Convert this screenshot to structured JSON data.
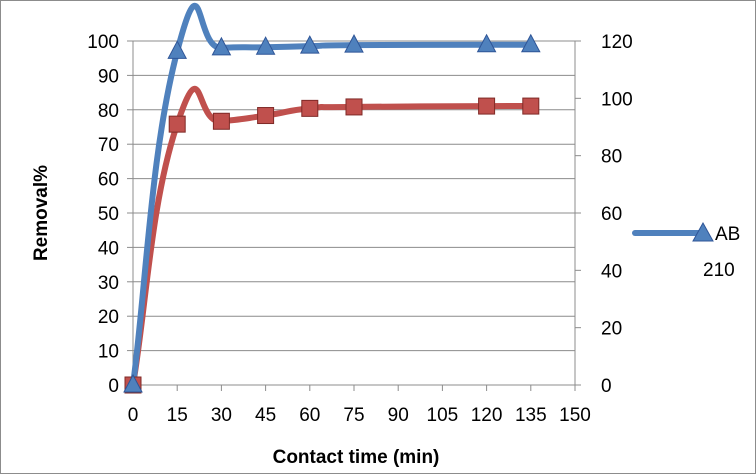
{
  "chart_data": {
    "type": "line",
    "xlabel": "Contact time (min)",
    "ylabel": "Removal%",
    "ylabel_right": "",
    "x_ticks": [
      0,
      15,
      30,
      45,
      60,
      75,
      90,
      105,
      120,
      135,
      150
    ],
    "xlim": [
      0,
      150
    ],
    "ylim": [
      0,
      100
    ],
    "y_ticks": [
      0,
      10,
      20,
      30,
      40,
      50,
      60,
      70,
      80,
      90,
      100
    ],
    "ylim_right": [
      0,
      120
    ],
    "y_ticks_right": [
      0,
      20,
      40,
      60,
      80,
      100,
      120
    ],
    "grid": "horizontal",
    "legend_position": "right",
    "series": [
      {
        "name": "AB 210",
        "axis": "left",
        "color": "#4f81bd",
        "marker": "triangle",
        "x": [
          0,
          15,
          30,
          45,
          60,
          75,
          120,
          135
        ],
        "values": [
          0,
          97,
          98,
          98.2,
          98.5,
          98.8,
          98.9,
          98.9
        ]
      },
      {
        "name": "",
        "axis": "right",
        "color": "#c0504d",
        "marker": "square",
        "x": [
          0,
          15,
          30,
          45,
          60,
          75,
          120,
          135
        ],
        "values": [
          0,
          91,
          92,
          94,
          96.5,
          97,
          97.3,
          97.3
        ]
      }
    ]
  }
}
